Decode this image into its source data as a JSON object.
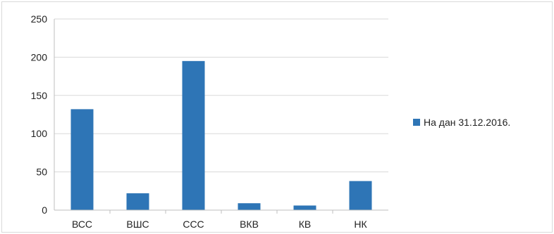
{
  "chart_data": {
    "type": "bar",
    "categories": [
      "ВСС",
      "ВШС",
      "ССС",
      "ВКВ",
      "КВ",
      "НК"
    ],
    "series": [
      {
        "name": "На дан 31.12.2016.",
        "values": [
          132,
          22,
          195,
          9,
          6,
          38
        ],
        "color": "#2e75b6"
      }
    ],
    "ylim": [
      0,
      250
    ],
    "yticks": [
      0,
      50,
      100,
      150,
      200,
      250
    ],
    "grid": true,
    "legend_position": "right"
  }
}
